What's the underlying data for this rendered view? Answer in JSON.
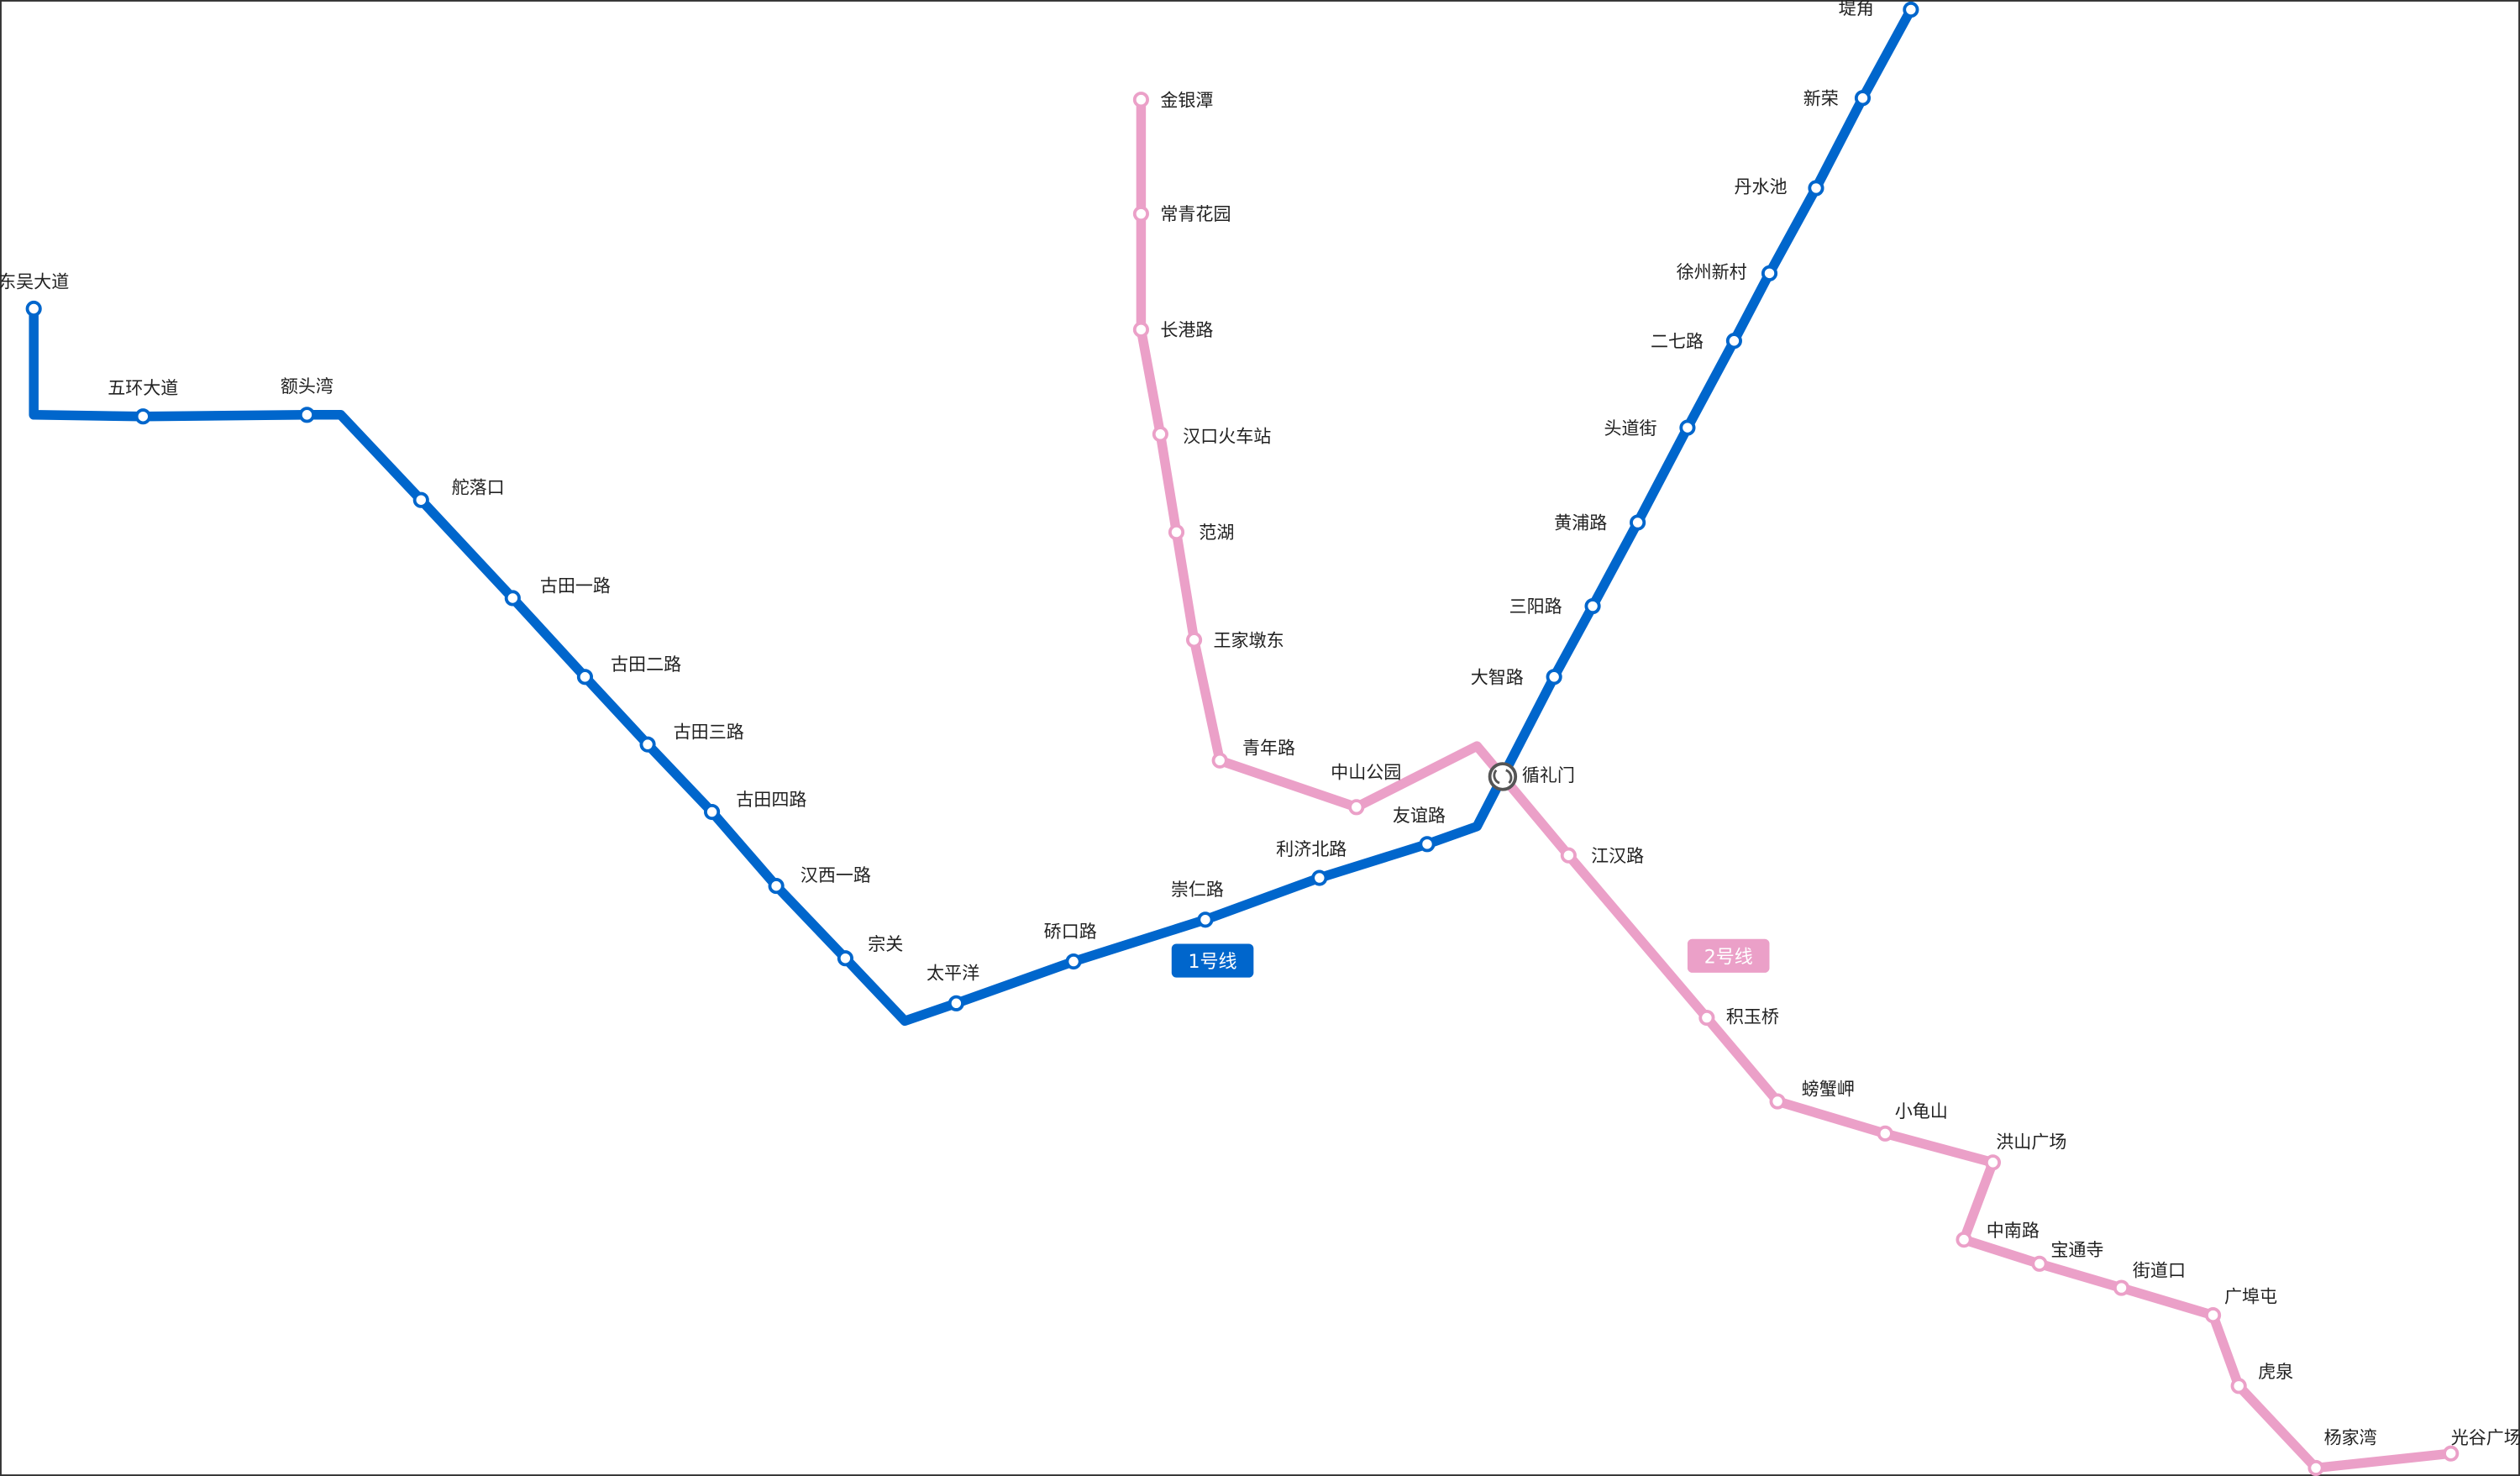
{
  "lines": [
    {
      "name": "1号线",
      "color": "#0066cc",
      "stations": [
        "东吴大道",
        "五环大道",
        "额头湾",
        "舵落口",
        "古田一路",
        "古田二路",
        "古田三路",
        "古田四路",
        "汉西一路",
        "宗关",
        "太平洋",
        "硚口路",
        "崇仁路",
        "利济北路",
        "友谊路",
        "循礼门",
        "大智路",
        "三阳路",
        "黄浦路",
        "头道街",
        "二七路",
        "徐州新村",
        "丹水池",
        "新荣",
        "堤角"
      ]
    },
    {
      "name": "2号线",
      "color": "#eba0c8",
      "stations": [
        "金银潭",
        "常青花园",
        "长港路",
        "汉口火车站",
        "范湖",
        "王家墩东",
        "青年路",
        "中山公园",
        "循礼门",
        "江汉路",
        "积玉桥",
        "螃蟹岬",
        "小龟山",
        "洪山广场",
        "中南路",
        "宝通寺",
        "街道口",
        "广埠屯",
        "虎泉",
        "杨家湾",
        "光谷广场"
      ]
    }
  ],
  "transfer_station": {
    "name": "循礼门",
    "icon": "transfer-icon"
  }
}
